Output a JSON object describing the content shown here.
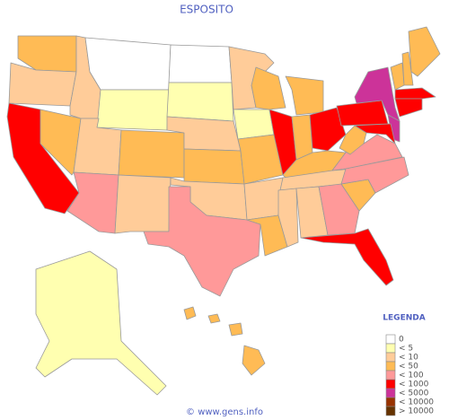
{
  "header": {
    "title": "ESPOSITO"
  },
  "legend": {
    "title": "LEGENDA",
    "items": [
      {
        "label": "0",
        "color": "#ffffff"
      },
      {
        "label": "< 5",
        "color": "#ffffb0"
      },
      {
        "label": "< 10",
        "color": "#ffcc99"
      },
      {
        "label": "< 50",
        "color": "#ffbb55"
      },
      {
        "label": "< 100",
        "color": "#ff9999"
      },
      {
        "label": "< 1000",
        "color": "#ff0000"
      },
      {
        "label": "< 5000",
        "color": "#cc3399"
      },
      {
        "label": "< 10000",
        "color": "#993300"
      },
      {
        "label": "> 10000",
        "color": "#663300"
      }
    ]
  },
  "footer": {
    "text": "© www.gens.info"
  }
}
